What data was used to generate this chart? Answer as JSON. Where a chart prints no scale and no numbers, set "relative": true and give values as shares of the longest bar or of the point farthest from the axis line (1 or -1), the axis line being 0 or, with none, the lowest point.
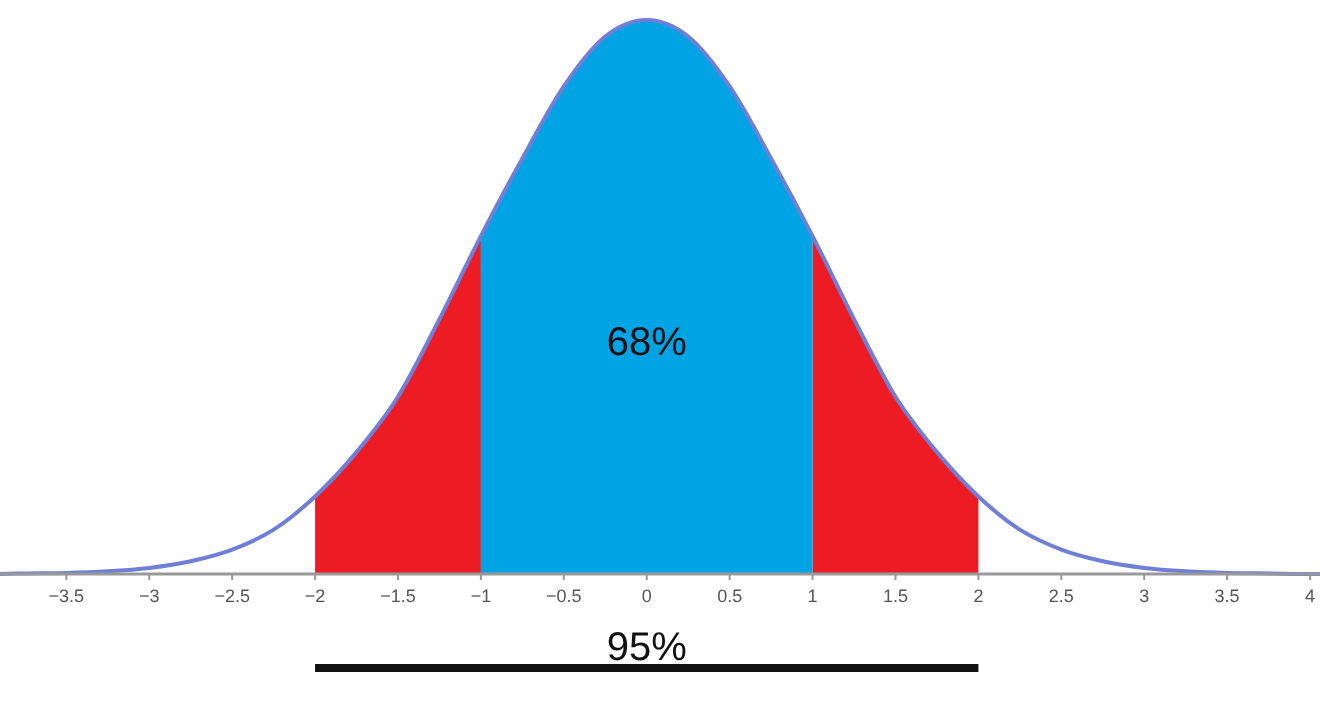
{
  "chart_data": {
    "type": "area",
    "relative": true,
    "xlim": [
      -3.9,
      4.06
    ],
    "xticks": [
      {
        "value": -3.5,
        "label": "−3.5"
      },
      {
        "value": -3,
        "label": "−3"
      },
      {
        "value": -2.5,
        "label": "−2.5"
      },
      {
        "value": -2,
        "label": "−2"
      },
      {
        "value": -1.5,
        "label": "−1.5"
      },
      {
        "value": -1,
        "label": "−1"
      },
      {
        "value": -0.5,
        "label": "−0.5"
      },
      0,
      0.5,
      1,
      1.5,
      2,
      2.5,
      3,
      3.5,
      4
    ],
    "series": [
      {
        "color": "#ed1c24",
        "x": [
          -2,
          -1.75,
          -1.5,
          -1.25,
          -1
        ],
        "values": [
          0.14,
          0.22,
          0.32,
          0.46,
          0.61
        ]
      },
      {
        "color": "#ed1c24",
        "x": [
          1,
          1.25,
          1.5,
          1.75,
          2
        ],
        "values": [
          0.61,
          0.46,
          0.32,
          0.22,
          0.14
        ]
      },
      {
        "color": "#00a3e4",
        "x": [
          -1,
          -0.75,
          -0.5,
          -0.25,
          0,
          0.25,
          0.5,
          0.75,
          1
        ],
        "values": [
          0.61,
          0.75,
          0.88,
          0.97,
          1,
          0.97,
          0.88,
          0.75,
          0.61
        ]
      },
      {
        "type": "line",
        "color": "#6f7fd8",
        "x": [
          -3.9,
          -3.75,
          -3.5,
          -3.25,
          -3,
          -2.75,
          -2.5,
          -2.25,
          -2,
          -1.75,
          -1.5,
          -1.25,
          -1,
          -0.75,
          -0.5,
          -0.25,
          0,
          0.25,
          0.5,
          0.75,
          1,
          1.25,
          1.5,
          1.75,
          2,
          2.25,
          2.5,
          2.75,
          3,
          3.25,
          3.5,
          3.75,
          4,
          4.06
        ],
        "values": [
          0,
          0.001,
          0.002,
          0.005,
          0.011,
          0.023,
          0.044,
          0.08,
          0.14,
          0.22,
          0.32,
          0.46,
          0.61,
          0.75,
          0.88,
          0.97,
          1,
          0.97,
          0.88,
          0.75,
          0.61,
          0.46,
          0.32,
          0.22,
          0.14,
          0.08,
          0.044,
          0.023,
          0.011,
          0.005,
          0.002,
          0.001,
          0,
          0
        ]
      }
    ],
    "annotations": [
      "68%",
      "95%"
    ]
  }
}
